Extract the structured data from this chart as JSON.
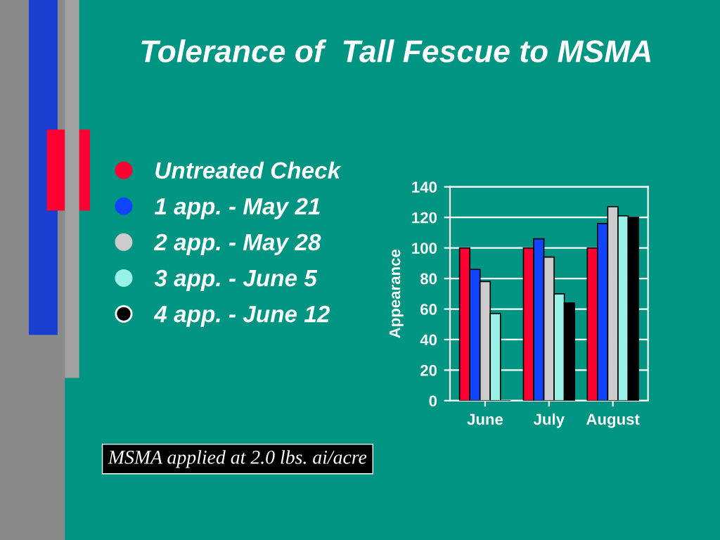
{
  "chart_data": {
    "type": "bar",
    "title": "Tolerance of  Tall Fescue to MSMA",
    "ylabel": "Appearance",
    "categories": [
      "June",
      "July",
      "August"
    ],
    "series": [
      {
        "name": "Untreated Check",
        "color": "#ff0033",
        "values": [
          100,
          100,
          100
        ]
      },
      {
        "name": "1 app. - May 21",
        "color": "#1144ff",
        "values": [
          86,
          106,
          116
        ]
      },
      {
        "name": "2 app. - May 28",
        "color": "#cccccc",
        "values": [
          78,
          94,
          127
        ]
      },
      {
        "name": "3 app. - June 5",
        "color": "#99f2e8",
        "values": [
          57,
          70,
          121
        ]
      },
      {
        "name": "4 app. - June 12",
        "color": "#000000",
        "values": [
          0,
          64,
          120
        ]
      }
    ],
    "ylim": [
      0,
      140
    ],
    "yticks": [
      0,
      20,
      40,
      60,
      80,
      100,
      120,
      140
    ],
    "grid": "y",
    "legend": "left",
    "annotations": [
      "MSMA applied at 2.0 lbs. ai/acre"
    ]
  }
}
